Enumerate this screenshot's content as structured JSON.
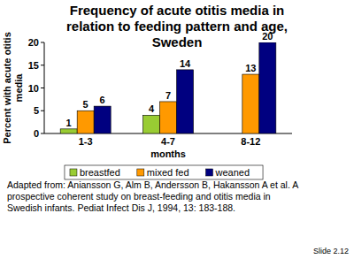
{
  "chart_data": {
    "type": "bar",
    "title": "Frequency of acute otitis media in relation to feeding pattern and age, Sweden",
    "y_label": "Percent with acute otitis media",
    "x_label": "months",
    "categories": [
      "1-3",
      "4-7",
      "8-12"
    ],
    "series": [
      {
        "name": "breastfed",
        "color": "#99cc33",
        "values": [
          1,
          4,
          null
        ]
      },
      {
        "name": "mixed fed",
        "color": "#ff9900",
        "values": [
          5,
          7,
          13
        ]
      },
      {
        "name": "weaned",
        "color": "#000080",
        "values": [
          6,
          14,
          20
        ]
      }
    ],
    "ylim": [
      0,
      20
    ],
    "yticks": [
      0,
      5,
      10,
      15,
      20
    ],
    "grid": false,
    "data_labels": true,
    "legend": "bottom",
    "annotations": [
      "Adapted from: Aniansson G, Alm B, Andersson B, Hakansson A et al. A prospective coherent study on breast-feeding and otitis media in Swedish infants. Pediat Infect Dis J, 1994, 13: 183-188.",
      "Slide 2.12"
    ]
  }
}
